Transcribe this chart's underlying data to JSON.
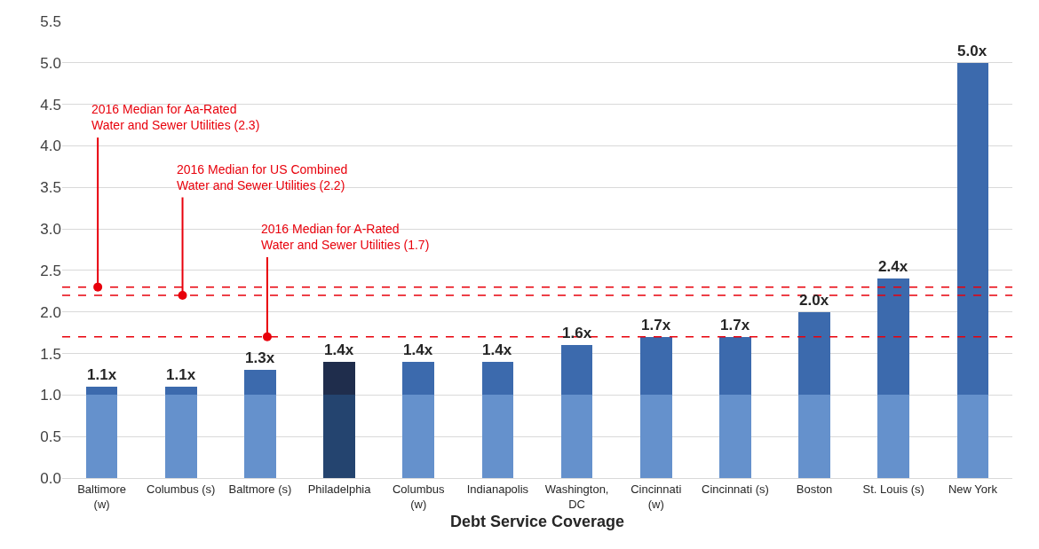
{
  "chart_data": {
    "type": "bar",
    "stacked": true,
    "xlabel": "Debt Service Coverage",
    "categories": [
      "Baltimore\n(w)",
      "Columbus (s)",
      "Baltmore (s)",
      "Philadelphia",
      "Columbus\n(w)",
      "Indianapolis",
      "Washington,\nDC",
      "Cincinnati\n(w)",
      "Cincinnati (s)",
      "Boston",
      "St. Louis (s)",
      "New York"
    ],
    "series": [
      {
        "colors": [
          "#6591cc",
          "#6591cc",
          "#6591cc",
          "#24446f",
          "#6591cc",
          "#6591cc",
          "#6591cc",
          "#6591cc",
          "#6591cc",
          "#6591cc",
          "#6591cc",
          "#6591cc"
        ],
        "values": [
          1.0,
          1.0,
          1.0,
          1.0,
          1.0,
          1.0,
          1.0,
          1.0,
          1.0,
          1.0,
          1.0,
          1.0
        ]
      },
      {
        "colors": [
          "#3c6aad",
          "#3c6aad",
          "#3c6aad",
          "#1f2d4c",
          "#3c6aad",
          "#3c6aad",
          "#3c6aad",
          "#3c6aad",
          "#3c6aad",
          "#3c6aad",
          "#3c6aad",
          "#3c6aad"
        ],
        "values": [
          0.1,
          0.1,
          0.3,
          0.4,
          0.4,
          0.4,
          0.6,
          0.7,
          0.7,
          1.0,
          1.4,
          4.0
        ]
      }
    ],
    "totals": [
      "1.1x",
      "1.1x",
      "1.3x",
      "1.4x",
      "1.4x",
      "1.4x",
      "1.6x",
      "1.7x",
      "1.7x",
      "2.0x",
      "2.4x",
      "5.0x"
    ],
    "ylim": [
      0,
      5.5
    ],
    "yticks": [
      {
        "value": 0,
        "label": "0.0"
      },
      {
        "value": 0.5,
        "label": "0.5"
      },
      {
        "value": 1,
        "label": "1.0"
      },
      {
        "value": 1.5,
        "label": "1.5"
      },
      {
        "value": 2,
        "label": "2.0"
      },
      {
        "value": 2.5,
        "label": "2.5"
      },
      {
        "value": 3,
        "label": "3.0"
      },
      {
        "value": 3.5,
        "label": "3.5"
      },
      {
        "value": 4,
        "label": "4.0"
      },
      {
        "value": 4.5,
        "label": "4.5"
      },
      {
        "value": 5,
        "label": "5.0"
      },
      {
        "value": 5.5,
        "label": "5.5"
      }
    ],
    "grid": "y",
    "ref_lines": [
      {
        "axis": "y",
        "value": 2.3,
        "label": "2016 Median for Aa-Rated\nWater and Sewer Utilities (2.3)",
        "color": "#e8000b",
        "line_style": "dashed"
      },
      {
        "axis": "y",
        "value": 2.2,
        "label": "2016 Median for US Combined\nWater and Sewer Utilities (2.2)",
        "color": "#e8000b",
        "line_style": "dashed"
      },
      {
        "axis": "y",
        "value": 1.7,
        "label": "2016 Median for A-Rated\nWater and Sewer Utilities (1.7)",
        "color": "#e8000b",
        "line_style": "dashed"
      }
    ]
  }
}
